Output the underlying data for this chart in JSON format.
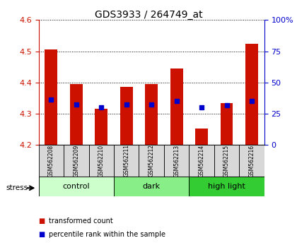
{
  "title": "GDS3933 / 264749_at",
  "samples": [
    "GSM562208",
    "GSM562209",
    "GSM562210",
    "GSM562211",
    "GSM562212",
    "GSM562213",
    "GSM562214",
    "GSM562215",
    "GSM562216"
  ],
  "red_values": [
    4.505,
    4.395,
    4.315,
    4.385,
    4.395,
    4.445,
    4.252,
    4.335,
    4.525
  ],
  "blue_values": [
    4.345,
    4.33,
    4.32,
    4.33,
    4.33,
    4.34,
    4.32,
    4.328,
    4.34
  ],
  "ylim": [
    4.2,
    4.6
  ],
  "yticks_left": [
    4.2,
    4.3,
    4.4,
    4.5,
    4.6
  ],
  "yticks_right": [
    0,
    25,
    50,
    75,
    100
  ],
  "groups": [
    {
      "label": "control",
      "start": 0,
      "end": 3,
      "color": "#ccffcc"
    },
    {
      "label": "dark",
      "start": 3,
      "end": 6,
      "color": "#88ee88"
    },
    {
      "label": "high light",
      "start": 6,
      "end": 9,
      "color": "#33cc33"
    }
  ],
  "bar_color": "#cc1100",
  "dot_color": "#0000cc",
  "bar_width": 0.5,
  "base_value": 4.2,
  "left_axis_color": "#cc1100",
  "right_axis_color": "#0000cc",
  "stress_label": "stress",
  "legend_red": "transformed count",
  "legend_blue": "percentile rank within the sample"
}
